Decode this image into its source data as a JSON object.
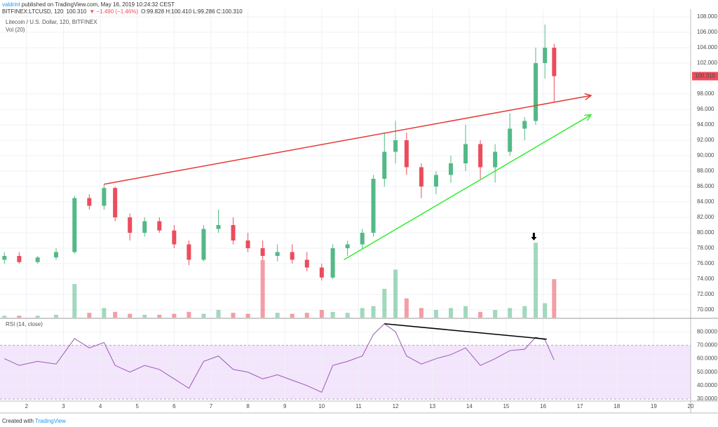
{
  "header": {
    "author": "valdrint",
    "published": "published on TradingView.com, May 16, 2019 10:24:32 CEST",
    "symbol": "BITFINEX:LTCUSD, 120",
    "last": "100.310",
    "change": "▼ −1.490 (−1.46%)",
    "ohlc": "O:99.828 H:100.410 L:99.286 C:100.310"
  },
  "chart_data": {
    "type": "candlestick",
    "title": "Litecoin / U.S. Dollar, 120, BITFINEX",
    "volume_title": "Vol (20)",
    "rsi_title": "RSI (14, close)",
    "up_color": "#53b987",
    "down_color": "#eb4d5c",
    "rsi_color": "#9b59b6",
    "grid": true,
    "x": [
      1.4,
      1.8,
      2.3,
      2.8,
      3.3,
      3.7,
      4.1,
      4.4,
      4.8,
      5.2,
      5.6,
      6,
      6.4,
      6.8,
      7.2,
      7.6,
      8,
      8.4,
      8.8,
      9.2,
      9.6,
      10,
      10.3,
      10.7,
      11.1,
      11.4,
      11.7,
      12,
      12.3,
      12.7,
      13.1,
      13.5,
      13.9,
      14.3,
      14.7,
      15.1,
      15.5,
      15.8,
      16.05,
      16.3
    ],
    "open": [
      76.5,
      77,
      76.2,
      76.8,
      77.5,
      84.5,
      83.5,
      85.8,
      82,
      80,
      81.5,
      80.3,
      78.5,
      76.5,
      80.5,
      81,
      79,
      78,
      77,
      77.5,
      76.5,
      75.5,
      74.2,
      78,
      78.5,
      80,
      87,
      90.5,
      92,
      88.5,
      86,
      87.5,
      89,
      91.5,
      88.5,
      90.5,
      93.5,
      94.5,
      102,
      104
    ],
    "high": [
      77.5,
      77.5,
      77,
      78,
      84.8,
      85,
      86.3,
      86,
      82.5,
      82,
      82,
      81,
      79,
      81,
      83,
      82,
      80,
      79,
      78.5,
      78.5,
      77.5,
      76,
      78.5,
      79,
      80.5,
      87.5,
      93,
      94.5,
      93,
      89,
      88,
      90,
      94,
      92,
      91.5,
      95.5,
      95,
      104,
      107,
      104.5
    ],
    "low": [
      76,
      76,
      76,
      76.5,
      77.3,
      83,
      83,
      81.5,
      79,
      79.5,
      80,
      78,
      75.8,
      76.3,
      80,
      78.5,
      77.5,
      76.5,
      76.3,
      76,
      75,
      73.8,
      74,
      77,
      78,
      79.5,
      86,
      89,
      87.5,
      84.5,
      85,
      86.5,
      88,
      87,
      86.5,
      90,
      92,
      94,
      100,
      97
    ],
    "close": [
      77,
      76.2,
      76.8,
      77.5,
      84.5,
      83.5,
      85.8,
      82,
      80,
      81.5,
      80.3,
      78.5,
      76.5,
      80.5,
      81,
      79,
      78,
      77,
      77.5,
      76.5,
      75.5,
      74.2,
      78,
      78.5,
      80,
      87,
      90.5,
      92,
      88.5,
      86,
      87.5,
      89,
      91.5,
      88.5,
      90.5,
      93.5,
      94.5,
      102,
      104,
      100.31
    ],
    "volume": [
      2,
      2,
      2,
      3,
      35,
      5,
      10,
      6,
      4,
      3,
      3,
      4,
      6,
      4,
      8,
      5,
      4,
      60,
      5,
      4,
      5,
      8,
      6,
      5,
      10,
      12,
      30,
      50,
      20,
      10,
      8,
      10,
      12,
      6,
      8,
      10,
      12,
      78,
      15,
      40
    ],
    "rsi": [
      60,
      55,
      58,
      56,
      75,
      68,
      72,
      55,
      50,
      55,
      52,
      45,
      38,
      58,
      62,
      52,
      50,
      45,
      48,
      44,
      40,
      35,
      55,
      58,
      62,
      78,
      86,
      80,
      62,
      56,
      60,
      63,
      68,
      55,
      60,
      66,
      67,
      76,
      74,
      59
    ],
    "xlim": [
      1.28,
      20
    ],
    "ylim": [
      69,
      109
    ],
    "volume_ylim": [
      0,
      100
    ],
    "rsi_ylim": [
      29,
      89.5
    ],
    "xticks": [
      2,
      3,
      4,
      5,
      6,
      7,
      8,
      9,
      10,
      11,
      12,
      13,
      14,
      15,
      16,
      17,
      18,
      19,
      20
    ],
    "yticks": [
      {
        "value": 70,
        "label": "70.000"
      },
      {
        "value": 72,
        "label": "72.000"
      },
      {
        "value": 74,
        "label": "74.000"
      },
      {
        "value": 76,
        "label": "76.000"
      },
      {
        "value": 78,
        "label": "78.000"
      },
      {
        "value": 80,
        "label": "80.000"
      },
      {
        "value": 82,
        "label": "82.000"
      },
      {
        "value": 84,
        "label": "84.000"
      },
      {
        "value": 86,
        "label": "86.000"
      },
      {
        "value": 88,
        "label": "88.000"
      },
      {
        "value": 90,
        "label": "90.000"
      },
      {
        "value": 92,
        "label": "92.000"
      },
      {
        "value": 94,
        "label": "94.000"
      },
      {
        "value": 96,
        "label": "96.000"
      },
      {
        "value": 98,
        "label": "98.000"
      },
      {
        "value": 102,
        "label": "102.000"
      },
      {
        "value": 104,
        "label": "104.000"
      },
      {
        "value": 106,
        "label": "106.000"
      },
      {
        "value": 108,
        "label": "108.000"
      }
    ],
    "last_price": {
      "value": 100.31,
      "label": "100.310"
    },
    "rsi_ticks": [
      {
        "value": 30,
        "label": "30.0000"
      },
      {
        "value": 40,
        "label": "40.0000"
      },
      {
        "value": 50,
        "label": "50.0000"
      },
      {
        "value": 60,
        "label": "60.0000"
      },
      {
        "value": 70,
        "label": "70.0000"
      },
      {
        "value": 80,
        "label": "80.0000"
      }
    ],
    "rsi_band": [
      30,
      70
    ],
    "trend_lines": [
      {
        "color": "#e53935",
        "x": [
          4.1,
          17.3
        ],
        "y": [
          86.3,
          97.8
        ]
      },
      {
        "color": "#33ee33",
        "x": [
          10.6,
          17.3
        ],
        "y": [
          76.5,
          95.3
        ]
      }
    ],
    "rsi_trend_lines": [
      {
        "color": "#000000",
        "x": [
          11.7,
          16.1
        ],
        "y": [
          86,
          74.5
        ]
      }
    ],
    "arrow": {
      "x": 15.75,
      "y": 79
    }
  },
  "footer": {
    "text": "Created with",
    "brand": "TradingView"
  }
}
